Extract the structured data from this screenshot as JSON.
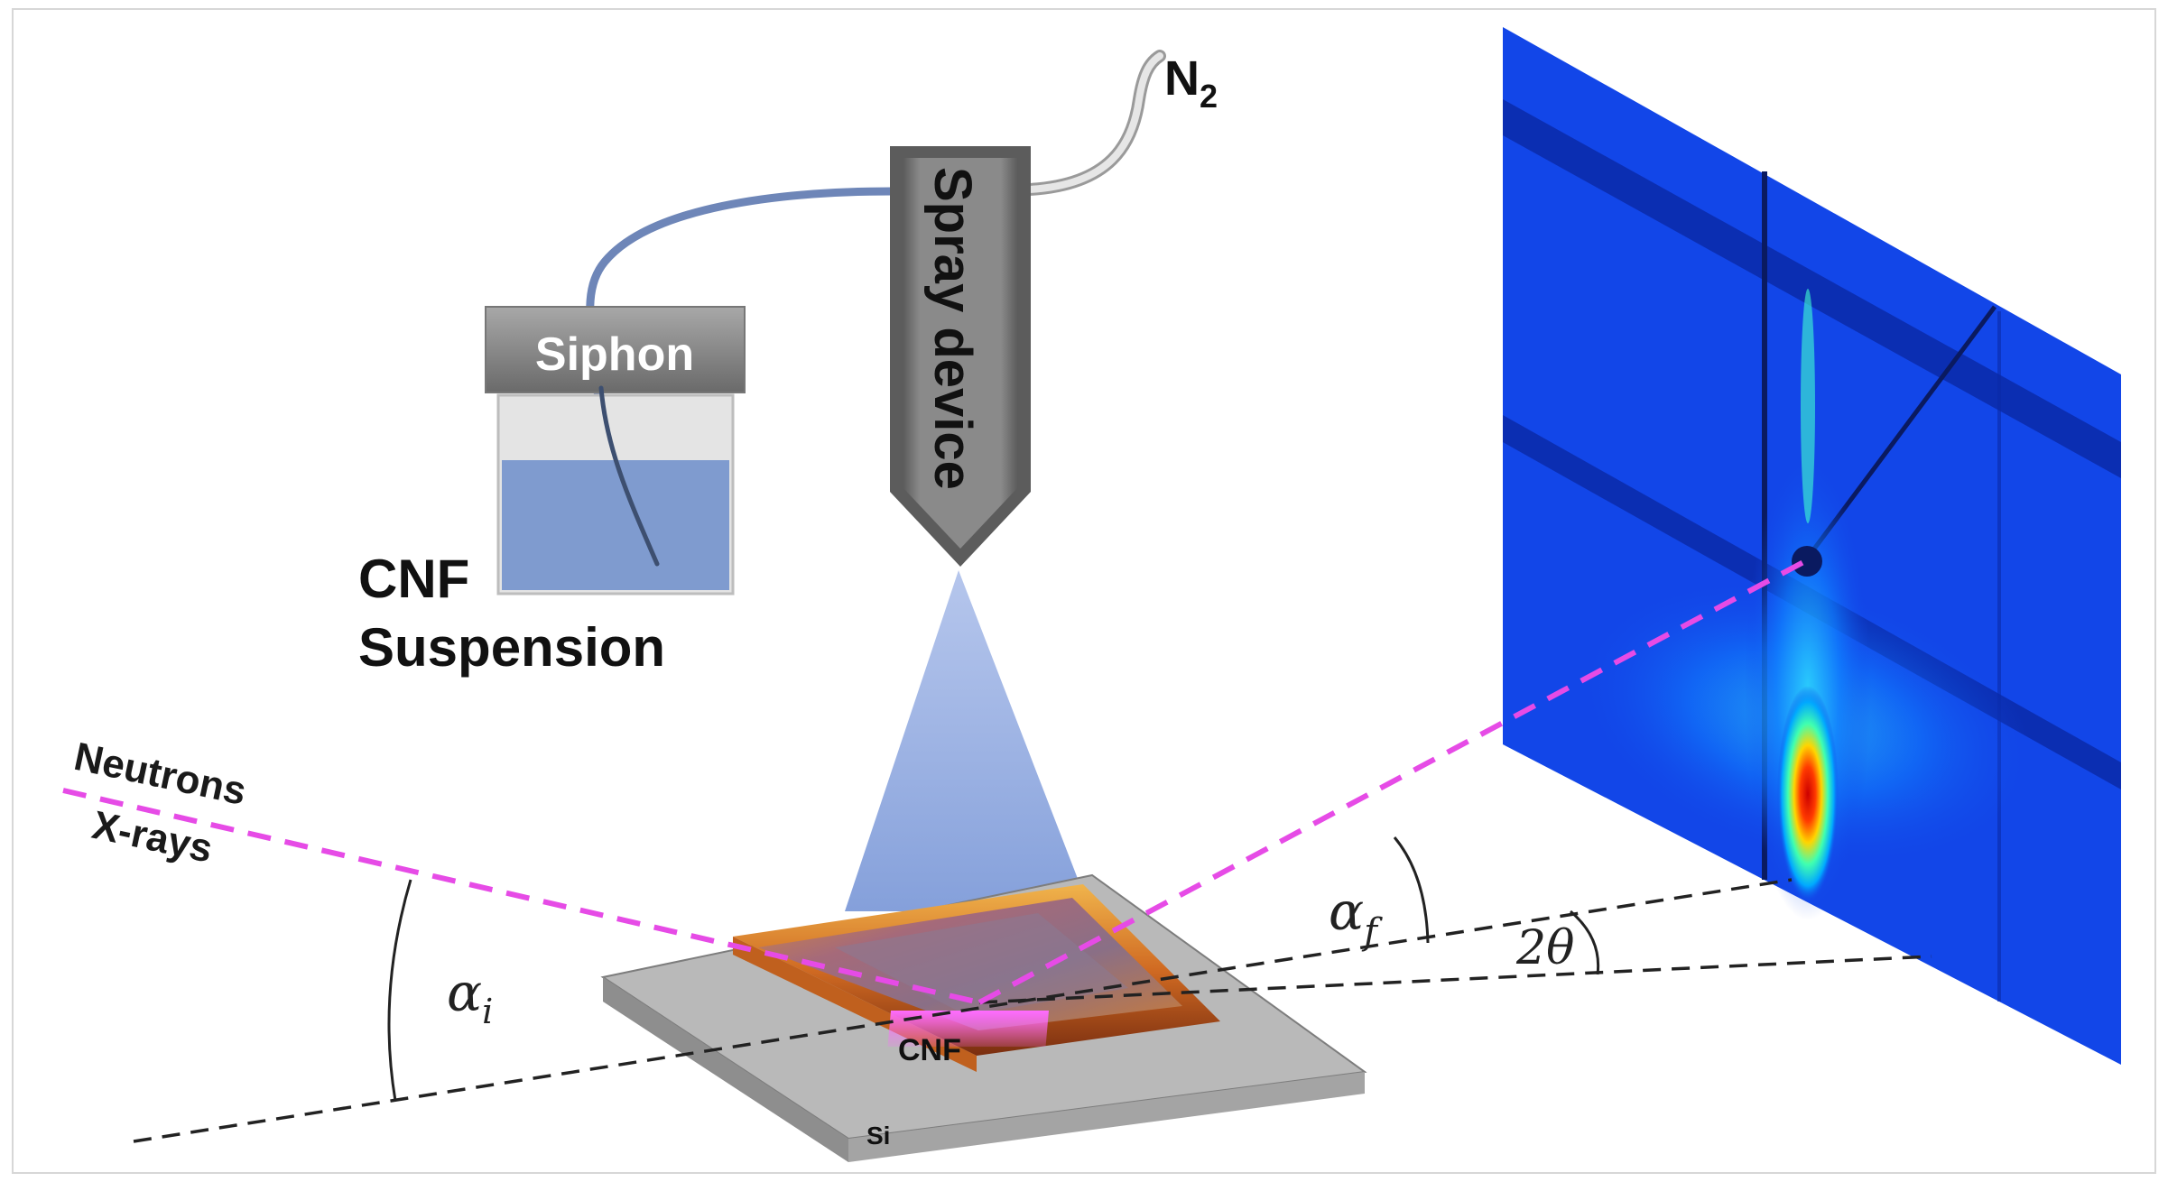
{
  "labels": {
    "n2_main": "N",
    "n2_sub": "2",
    "spray_device": "Spray device",
    "siphon": "Siphon",
    "cnf_suspension_line1": "CNF",
    "cnf_suspension_line2": "Suspension",
    "neutrons": "Neutrons",
    "xrays": "X-rays",
    "alpha_i_main": "α",
    "alpha_i_sub": "i",
    "alpha_f_main": "α",
    "alpha_f_sub": "f",
    "two_theta": "2θ",
    "cnf_film": "CNF",
    "si_substrate": "Si"
  },
  "colors": {
    "beam": "#e64be6",
    "reference_line": "#222222",
    "spray_cone": "#7b98d6",
    "liquid": "#7f9bcf",
    "detector_dark": "#0a2aa8",
    "detector_mid": "#1246e8",
    "hose_blue": "#6e86b8",
    "hose_grey": "#c8c8c8",
    "device_grey": "#808080",
    "substrate_grey": "#9c9c9c"
  },
  "icons": {
    "spray_device": "spray-nozzle-icon",
    "siphon_container": "beaker-icon",
    "detector": "area-detector-icon"
  }
}
